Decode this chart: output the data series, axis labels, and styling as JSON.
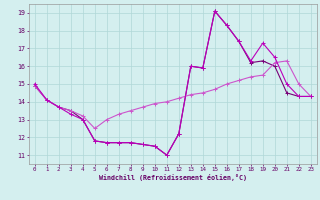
{
  "xlabel": "Windchill (Refroidissement éolien,°C)",
  "x": [
    0,
    1,
    2,
    3,
    4,
    5,
    6,
    7,
    8,
    9,
    10,
    11,
    12,
    13,
    14,
    15,
    16,
    17,
    18,
    19,
    20,
    21,
    22,
    23
  ],
  "line1": [
    15.0,
    14.1,
    13.7,
    13.3,
    13.0,
    11.8,
    11.7,
    11.7,
    11.7,
    11.6,
    11.5,
    11.0,
    12.2,
    16.0,
    15.9,
    19.1,
    18.3,
    17.4,
    16.3,
    17.3,
    16.5,
    15.0,
    14.3,
    14.3
  ],
  "line2": [
    14.9,
    14.1,
    13.7,
    13.5,
    13.2,
    12.5,
    13.0,
    13.3,
    13.5,
    13.7,
    13.9,
    14.0,
    14.2,
    14.4,
    14.5,
    14.7,
    15.0,
    15.2,
    15.4,
    15.5,
    16.2,
    16.3,
    15.0,
    14.3
  ],
  "line3": [
    14.9,
    14.1,
    13.7,
    13.5,
    13.0,
    11.8,
    11.7,
    11.7,
    11.7,
    11.6,
    11.5,
    11.0,
    12.2,
    16.0,
    15.9,
    19.1,
    18.3,
    17.4,
    16.2,
    16.3,
    16.0,
    14.5,
    14.3,
    14.3
  ],
  "color1": "#bb00bb",
  "color2": "#cc55cc",
  "color3": "#770077",
  "bg_color": "#d4efef",
  "grid_color": "#b0d8d8",
  "axis_color": "#660066",
  "text_color": "#660066",
  "ylim": [
    10.5,
    19.5
  ],
  "xlim": [
    -0.5,
    23.5
  ],
  "yticks": [
    11,
    12,
    13,
    14,
    15,
    16,
    17,
    18,
    19
  ],
  "xticks": [
    0,
    1,
    2,
    3,
    4,
    5,
    6,
    7,
    8,
    9,
    10,
    11,
    12,
    13,
    14,
    15,
    16,
    17,
    18,
    19,
    20,
    21,
    22,
    23
  ]
}
